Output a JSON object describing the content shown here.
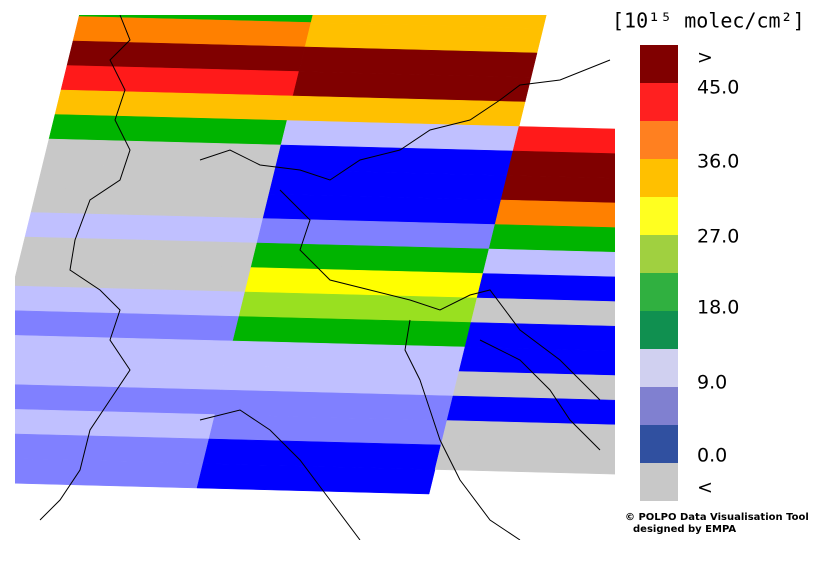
{
  "legend": {
    "title": "[10¹⁵ molec/cm²]",
    "labels": [
      ">",
      "45.0",
      "36.0",
      "27.0",
      "18.0",
      "9.0",
      "0.0",
      "<"
    ]
  },
  "credit": [
    "© POLPO Data Visualisation Tool",
    "designed by EMPA"
  ]
}
